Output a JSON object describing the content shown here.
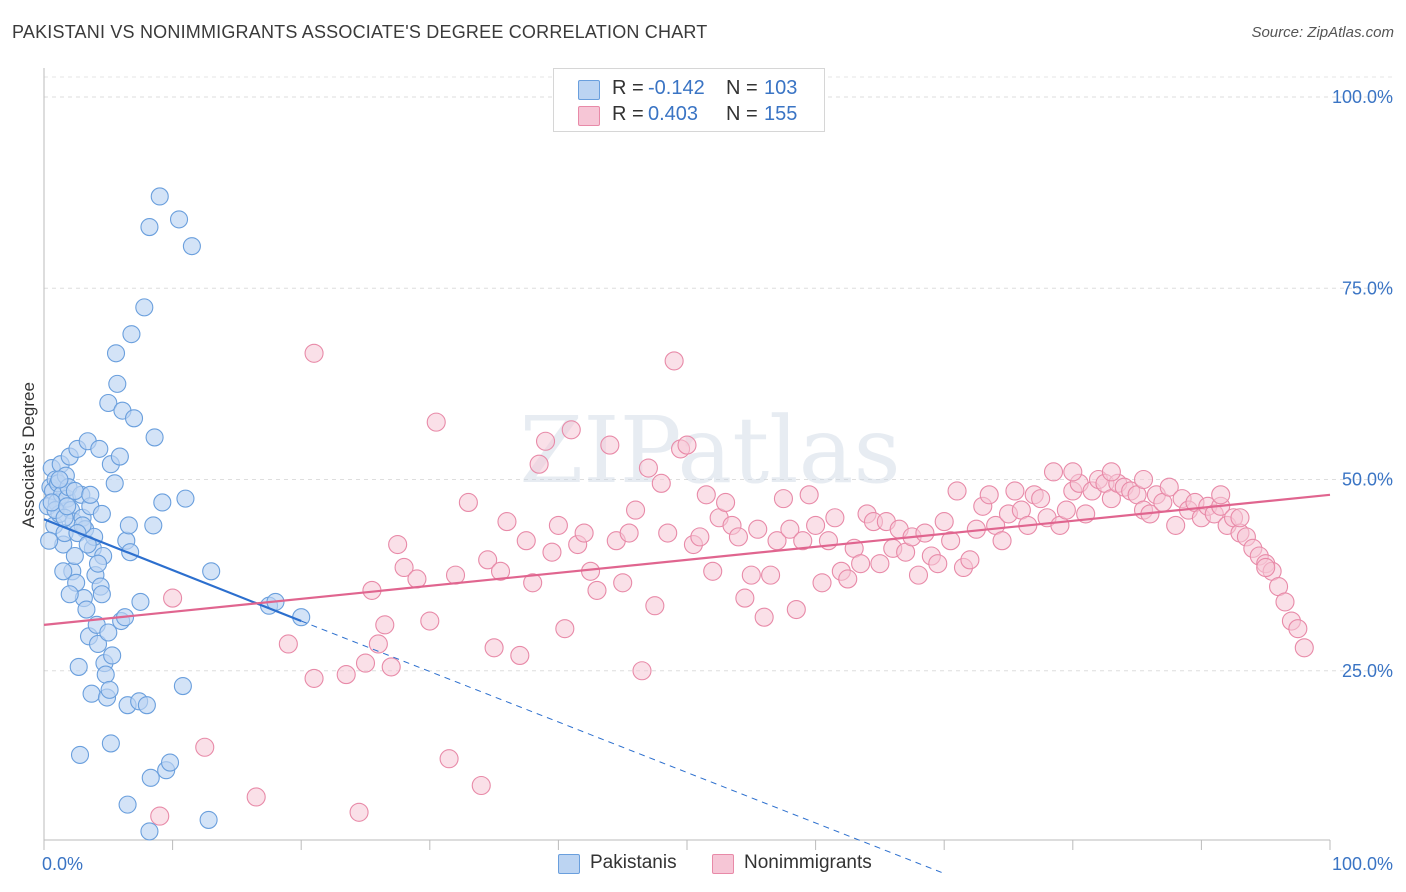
{
  "title": "PAKISTANI VS NONIMMIGRANTS ASSOCIATE'S DEGREE CORRELATION CHART",
  "source": "Source: ZipAtlas.com",
  "watermark": "ZIPatlas",
  "legend": {
    "rows": [
      {
        "r_label": "R =",
        "r_value": "-0.142",
        "n_label": "N =",
        "n_value": "103"
      },
      {
        "r_label": "R =",
        "r_value": "0.403",
        "n_label": "N =",
        "n_value": "155"
      }
    ]
  },
  "bottom_legend": {
    "pakistanis": "Pakistanis",
    "nonimmigrants": "Nonimmigrants"
  },
  "colors": {
    "pakistanis_fill": "#bcd4f2",
    "pakistanis_stroke": "#6a9fdd",
    "pakistanis_line": "#2c6fce",
    "nonimmigrants_fill": "#f6c6d6",
    "nonimmigrants_stroke": "#e88aa8",
    "nonimmigrants_line": "#e0658f",
    "tick_text": "#3a74c4"
  },
  "chart_data": {
    "type": "scatter",
    "title": "PAKISTANI VS NONIMMIGRANTS ASSOCIATE'S DEGREE CORRELATION CHART",
    "xlabel": "",
    "ylabel": "Associate's Degree",
    "xlim": [
      0,
      100
    ],
    "ylim": [
      0,
      100
    ],
    "x_tick_labels": [
      {
        "value": 0,
        "label": "0.0%"
      },
      {
        "value": 100,
        "label": "100.0%"
      }
    ],
    "y_tick_labels": [
      {
        "value": 25,
        "label": "25.0%"
      },
      {
        "value": 50,
        "label": "50.0%"
      },
      {
        "value": 75,
        "label": "75.0%"
      },
      {
        "value": 100,
        "label": "100.0%"
      }
    ],
    "series": [
      {
        "name": "Pakistanis",
        "r": -0.142,
        "n": 103,
        "trend": {
          "x0": 0,
          "y0": 44.8,
          "x1": 20,
          "y1": 31.5,
          "dashed_to_x": 70,
          "dashed_to_y": -1.5
        },
        "points": [
          [
            0.3,
            46.5
          ],
          [
            0.5,
            49.0
          ],
          [
            0.6,
            51.5
          ],
          [
            0.7,
            48.5
          ],
          [
            0.8,
            44.0
          ],
          [
            0.9,
            50.0
          ],
          [
            1.0,
            47.0
          ],
          [
            1.1,
            49.5
          ],
          [
            1.2,
            45.5
          ],
          [
            1.3,
            52.0
          ],
          [
            1.4,
            48.0
          ],
          [
            1.5,
            41.5
          ],
          [
            1.6,
            43.0
          ],
          [
            1.7,
            50.5
          ],
          [
            1.8,
            47.5
          ],
          [
            1.9,
            49.0
          ],
          [
            2.0,
            53.0
          ],
          [
            2.1,
            46.0
          ],
          [
            2.2,
            38.0
          ],
          [
            2.3,
            44.5
          ],
          [
            2.4,
            40.0
          ],
          [
            2.5,
            36.5
          ],
          [
            2.6,
            54.0
          ],
          [
            2.7,
            25.5
          ],
          [
            2.8,
            14.0
          ],
          [
            2.9,
            48.0
          ],
          [
            3.0,
            45.0
          ],
          [
            3.1,
            34.5
          ],
          [
            3.2,
            43.5
          ],
          [
            3.3,
            33.0
          ],
          [
            3.4,
            55.0
          ],
          [
            3.5,
            29.5
          ],
          [
            3.6,
            46.5
          ],
          [
            3.7,
            22.0
          ],
          [
            3.8,
            41.0
          ],
          [
            3.9,
            42.5
          ],
          [
            4.0,
            37.5
          ],
          [
            4.1,
            31.0
          ],
          [
            4.2,
            28.5
          ],
          [
            4.3,
            54.0
          ],
          [
            4.4,
            36.0
          ],
          [
            4.5,
            45.5
          ],
          [
            4.6,
            40.0
          ],
          [
            4.7,
            26.0
          ],
          [
            4.8,
            24.5
          ],
          [
            4.9,
            21.5
          ],
          [
            5.0,
            30.0
          ],
          [
            5.1,
            22.5
          ],
          [
            5.2,
            15.5
          ],
          [
            5.3,
            27.0
          ],
          [
            5.0,
            60.0
          ],
          [
            5.2,
            52.0
          ],
          [
            5.5,
            49.5
          ],
          [
            5.6,
            66.5
          ],
          [
            5.7,
            62.5
          ],
          [
            5.9,
            53.0
          ],
          [
            6.0,
            31.5
          ],
          [
            6.1,
            59.0
          ],
          [
            6.3,
            32.0
          ],
          [
            6.4,
            42.0
          ],
          [
            6.5,
            20.5
          ],
          [
            6.6,
            44.0
          ],
          [
            6.7,
            40.5
          ],
          [
            6.8,
            69.0
          ],
          [
            6.5,
            7.5
          ],
          [
            7.0,
            58.0
          ],
          [
            7.4,
            21.0
          ],
          [
            7.5,
            34.0
          ],
          [
            7.8,
            72.5
          ],
          [
            8.0,
            20.5
          ],
          [
            8.2,
            83.0
          ],
          [
            8.3,
            11.0
          ],
          [
            8.5,
            44.0
          ],
          [
            8.6,
            55.5
          ],
          [
            8.2,
            4.0
          ],
          [
            9.0,
            87.0
          ],
          [
            9.2,
            47.0
          ],
          [
            9.5,
            12.0
          ],
          [
            9.8,
            13.0
          ],
          [
            10.5,
            84.0
          ],
          [
            10.8,
            23.0
          ],
          [
            11.0,
            47.5
          ],
          [
            11.5,
            80.5
          ],
          [
            12.8,
            5.5
          ],
          [
            13.0,
            38.0
          ],
          [
            17.5,
            33.5
          ],
          [
            18.0,
            34.0
          ],
          [
            20.0,
            32.0
          ],
          [
            1.5,
            38.0
          ],
          [
            2.0,
            35.0
          ],
          [
            0.4,
            42.0
          ],
          [
            0.9,
            46.0
          ],
          [
            1.6,
            45.0
          ],
          [
            2.4,
            48.5
          ],
          [
            3.0,
            44.0
          ],
          [
            3.6,
            48.0
          ],
          [
            4.2,
            39.0
          ],
          [
            0.6,
            47.0
          ],
          [
            1.2,
            50.0
          ],
          [
            1.8,
            46.5
          ],
          [
            2.6,
            43.0
          ],
          [
            3.4,
            41.5
          ],
          [
            4.5,
            35.0
          ]
        ]
      },
      {
        "name": "Nonimmigrants",
        "r": 0.403,
        "n": 155,
        "trend": {
          "x0": 0,
          "y0": 31.0,
          "x1": 100,
          "y1": 48.0
        },
        "points": [
          [
            9.0,
            6.0
          ],
          [
            10.0,
            34.5
          ],
          [
            12.5,
            15.0
          ],
          [
            16.5,
            8.5
          ],
          [
            19.0,
            28.5
          ],
          [
            21.0,
            66.5
          ],
          [
            21.0,
            24.0
          ],
          [
            23.5,
            24.5
          ],
          [
            24.5,
            6.5
          ],
          [
            25.5,
            35.5
          ],
          [
            25.0,
            26.0
          ],
          [
            26.0,
            28.5
          ],
          [
            26.5,
            31.0
          ],
          [
            27.0,
            25.5
          ],
          [
            27.5,
            41.5
          ],
          [
            28.0,
            38.5
          ],
          [
            29.0,
            37.0
          ],
          [
            30.0,
            31.5
          ],
          [
            30.5,
            57.5
          ],
          [
            31.5,
            13.5
          ],
          [
            32.0,
            37.5
          ],
          [
            33.0,
            47.0
          ],
          [
            34.0,
            10.0
          ],
          [
            34.5,
            39.5
          ],
          [
            35.0,
            28.0
          ],
          [
            35.5,
            38.0
          ],
          [
            36.0,
            44.5
          ],
          [
            37.0,
            27.0
          ],
          [
            37.5,
            42.0
          ],
          [
            38.0,
            36.5
          ],
          [
            38.5,
            52.0
          ],
          [
            39.0,
            55.0
          ],
          [
            39.5,
            40.5
          ],
          [
            40.0,
            44.0
          ],
          [
            40.5,
            30.5
          ],
          [
            41.0,
            56.5
          ],
          [
            41.5,
            41.5
          ],
          [
            42.0,
            43.0
          ],
          [
            42.5,
            38.0
          ],
          [
            43.0,
            35.5
          ],
          [
            44.0,
            54.5
          ],
          [
            44.5,
            42.0
          ],
          [
            45.0,
            36.5
          ],
          [
            45.5,
            43.0
          ],
          [
            46.0,
            46.0
          ],
          [
            46.5,
            25.0
          ],
          [
            47.0,
            51.5
          ],
          [
            47.5,
            33.5
          ],
          [
            48.0,
            49.5
          ],
          [
            48.5,
            43.0
          ],
          [
            49.0,
            65.5
          ],
          [
            49.5,
            54.0
          ],
          [
            50.0,
            54.5
          ],
          [
            50.5,
            41.5
          ],
          [
            51.0,
            42.5
          ],
          [
            51.5,
            48.0
          ],
          [
            52.0,
            38.0
          ],
          [
            52.5,
            45.0
          ],
          [
            53.0,
            47.0
          ],
          [
            53.5,
            44.0
          ],
          [
            54.0,
            42.5
          ],
          [
            54.5,
            34.5
          ],
          [
            55.0,
            37.5
          ],
          [
            55.5,
            43.5
          ],
          [
            56.0,
            32.0
          ],
          [
            56.5,
            37.5
          ],
          [
            57.0,
            42.0
          ],
          [
            57.5,
            47.5
          ],
          [
            58.0,
            43.5
          ],
          [
            58.5,
            33.0
          ],
          [
            59.0,
            42.0
          ],
          [
            59.5,
            48.0
          ],
          [
            60.0,
            44.0
          ],
          [
            60.5,
            36.5
          ],
          [
            61.0,
            42.0
          ],
          [
            61.5,
            45.0
          ],
          [
            62.0,
            38.0
          ],
          [
            62.5,
            37.0
          ],
          [
            63.0,
            41.0
          ],
          [
            63.5,
            39.0
          ],
          [
            64.0,
            45.5
          ],
          [
            64.5,
            44.5
          ],
          [
            65.0,
            39.0
          ],
          [
            65.5,
            44.5
          ],
          [
            66.0,
            41.0
          ],
          [
            66.5,
            43.5
          ],
          [
            67.0,
            40.5
          ],
          [
            67.5,
            42.5
          ],
          [
            68.0,
            37.5
          ],
          [
            68.5,
            43.0
          ],
          [
            69.0,
            40.0
          ],
          [
            69.5,
            39.0
          ],
          [
            70.0,
            44.5
          ],
          [
            70.5,
            42.0
          ],
          [
            71.0,
            48.5
          ],
          [
            71.5,
            38.5
          ],
          [
            72.0,
            39.5
          ],
          [
            72.5,
            43.5
          ],
          [
            73.0,
            46.5
          ],
          [
            73.5,
            48.0
          ],
          [
            74.0,
            44.0
          ],
          [
            74.5,
            42.0
          ],
          [
            75.0,
            45.5
          ],
          [
            75.5,
            48.5
          ],
          [
            76.0,
            46.0
          ],
          [
            76.5,
            44.0
          ],
          [
            77.0,
            48.0
          ],
          [
            77.5,
            47.5
          ],
          [
            78.0,
            45.0
          ],
          [
            78.5,
            51.0
          ],
          [
            79.0,
            44.0
          ],
          [
            79.5,
            46.0
          ],
          [
            80.0,
            48.5
          ],
          [
            80.5,
            49.5
          ],
          [
            81.0,
            45.5
          ],
          [
            81.5,
            48.5
          ],
          [
            82.0,
            50.0
          ],
          [
            82.5,
            49.5
          ],
          [
            83.0,
            47.5
          ],
          [
            83.5,
            49.5
          ],
          [
            84.0,
            49.0
          ],
          [
            84.5,
            48.5
          ],
          [
            85.0,
            48.0
          ],
          [
            85.5,
            46.0
          ],
          [
            86.0,
            45.5
          ],
          [
            86.5,
            48.0
          ],
          [
            87.0,
            47.0
          ],
          [
            87.5,
            49.0
          ],
          [
            88.0,
            44.0
          ],
          [
            88.5,
            47.5
          ],
          [
            89.0,
            46.0
          ],
          [
            89.5,
            47.0
          ],
          [
            90.0,
            45.0
          ],
          [
            90.5,
            46.5
          ],
          [
            91.0,
            45.5
          ],
          [
            91.5,
            46.5
          ],
          [
            92.0,
            44.0
          ],
          [
            92.5,
            45.0
          ],
          [
            93.0,
            43.0
          ],
          [
            93.5,
            42.5
          ],
          [
            94.0,
            41.0
          ],
          [
            94.5,
            40.0
          ],
          [
            95.0,
            39.0
          ],
          [
            95.5,
            38.0
          ],
          [
            96.0,
            36.0
          ],
          [
            96.5,
            34.0
          ],
          [
            97.0,
            31.5
          ],
          [
            97.5,
            30.5
          ],
          [
            98.0,
            28.0
          ],
          [
            91.5,
            48.0
          ],
          [
            83.0,
            51.0
          ],
          [
            85.5,
            50.0
          ],
          [
            93.0,
            45.0
          ],
          [
            95.0,
            38.5
          ],
          [
            80.0,
            51.0
          ]
        ]
      }
    ]
  }
}
